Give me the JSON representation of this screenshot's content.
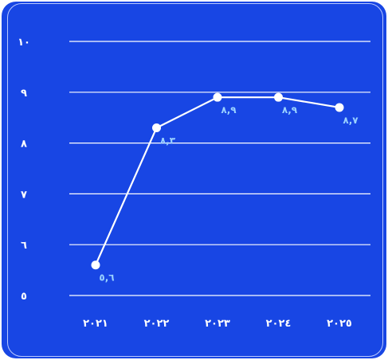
{
  "chart_data": {
    "type": "line",
    "title": "",
    "xlabel": "",
    "ylabel": "",
    "categories": [
      "٢٠٢١",
      "٢٠٢٢",
      "٢٠٢٣",
      "٢٠٢٤",
      "٢٠٢٥"
    ],
    "values": [
      5.6,
      8.3,
      8.9,
      8.9,
      8.7
    ],
    "value_labels": [
      "٥,٦",
      "٨,٣",
      "٨,٩",
      "٨,٩",
      "٨,٧"
    ],
    "ylim": [
      5,
      10
    ],
    "y_ticks": [
      5,
      6,
      7,
      8,
      9,
      10
    ],
    "y_tick_labels": [
      "٥",
      "٦",
      "٧",
      "٨",
      "٩",
      "١٠"
    ],
    "grid": true,
    "legend": "none"
  },
  "colors": {
    "background": "#1846e4",
    "line": "#ffffff",
    "grid": "#ffffff",
    "value_label": "#9ad2ff",
    "border": "#b9c8ff"
  }
}
